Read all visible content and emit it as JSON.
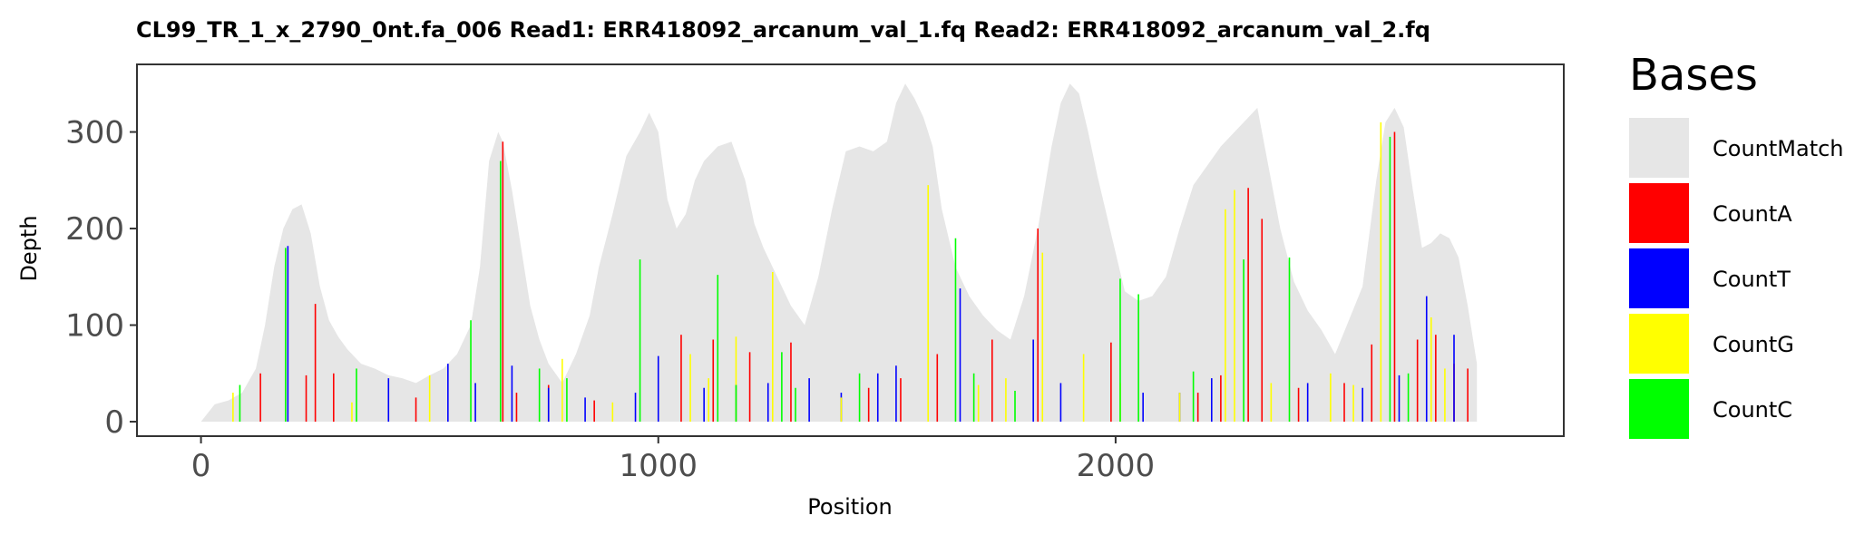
{
  "chart_data": {
    "type": "area",
    "title": "CL99_TR_1_x_2790_0nt.fa_006   Read1: ERR418092_arcanum_val_1.fq   Read2: ERR418092_arcanum_val_2.fq",
    "xlabel": "Position",
    "ylabel": "Depth",
    "xlim": [
      -140,
      2980
    ],
    "ylim": [
      -15,
      370
    ],
    "x_ticks": [
      0,
      1000,
      2000
    ],
    "x_tick_labels": [
      "0",
      "1000",
      "2000"
    ],
    "y_ticks": [
      0,
      100,
      200,
      300
    ],
    "y_tick_labels": [
      "0",
      "100",
      "200",
      "300"
    ],
    "grid": false,
    "legend": {
      "title": "Bases",
      "position": "right",
      "entries": [
        {
          "name": "CountMatch",
          "color": "#e6e6e6"
        },
        {
          "name": "CountA",
          "color": "#ff0000"
        },
        {
          "name": "CountT",
          "color": "#0000ff"
        },
        {
          "name": "CountG",
          "color": "#ffff00"
        },
        {
          "name": "CountC",
          "color": "#00ff00"
        }
      ]
    },
    "series": [
      {
        "name": "CountMatch",
        "color": "#e6e6e6",
        "style": "area",
        "x": [
          0,
          30,
          60,
          90,
          120,
          140,
          160,
          180,
          200,
          220,
          240,
          260,
          280,
          300,
          320,
          350,
          380,
          410,
          440,
          470,
          500,
          530,
          560,
          590,
          610,
          630,
          650,
          660,
          680,
          700,
          720,
          740,
          760,
          790,
          820,
          850,
          870,
          900,
          930,
          960,
          980,
          1000,
          1020,
          1040,
          1060,
          1080,
          1100,
          1130,
          1160,
          1190,
          1210,
          1230,
          1260,
          1290,
          1320,
          1350,
          1380,
          1410,
          1440,
          1470,
          1500,
          1520,
          1540,
          1560,
          1580,
          1600,
          1620,
          1650,
          1680,
          1710,
          1740,
          1770,
          1800,
          1830,
          1860,
          1880,
          1900,
          1920,
          1940,
          1960,
          1990,
          2020,
          2050,
          2080,
          2110,
          2140,
          2170,
          2200,
          2230,
          2260,
          2290,
          2310,
          2330,
          2360,
          2390,
          2420,
          2450,
          2480,
          2510,
          2540,
          2570,
          2590,
          2610,
          2630,
          2650,
          2670,
          2690,
          2710,
          2730,
          2750,
          2770,
          2790
        ],
        "values": [
          0,
          18,
          22,
          30,
          55,
          100,
          160,
          200,
          220,
          225,
          195,
          140,
          105,
          88,
          75,
          60,
          55,
          48,
          45,
          40,
          48,
          55,
          70,
          100,
          160,
          270,
          300,
          290,
          240,
          180,
          120,
          85,
          60,
          40,
          70,
          110,
          160,
          215,
          275,
          300,
          320,
          300,
          230,
          200,
          215,
          250,
          270,
          285,
          290,
          250,
          205,
          180,
          150,
          120,
          100,
          150,
          220,
          280,
          285,
          280,
          290,
          330,
          350,
          335,
          315,
          285,
          220,
          160,
          130,
          110,
          95,
          85,
          130,
          200,
          285,
          330,
          350,
          340,
          300,
          255,
          195,
          135,
          125,
          130,
          150,
          200,
          245,
          265,
          285,
          300,
          315,
          325,
          275,
          200,
          145,
          115,
          95,
          70,
          105,
          140,
          250,
          310,
          325,
          305,
          240,
          180,
          185,
          195,
          190,
          170,
          120,
          60
        ]
      },
      {
        "name": "CountA",
        "color": "#ff0000",
        "style": "spikes",
        "x": [
          130,
          230,
          250,
          290,
          470,
          660,
          690,
          760,
          860,
          1050,
          1120,
          1200,
          1290,
          1460,
          1530,
          1610,
          1730,
          1830,
          1990,
          2180,
          2230,
          2290,
          2320,
          2400,
          2500,
          2560,
          2610,
          2660,
          2700,
          2740,
          2770
        ],
        "values": [
          50,
          48,
          122,
          50,
          25,
          290,
          30,
          38,
          22,
          90,
          85,
          72,
          82,
          35,
          45,
          70,
          85,
          200,
          82,
          30,
          48,
          242,
          210,
          35,
          40,
          80,
          300,
          85,
          90,
          60,
          55
        ]
      },
      {
        "name": "CountT",
        "color": "#0000ff",
        "style": "spikes",
        "x": [
          190,
          410,
          540,
          600,
          680,
          760,
          840,
          950,
          1000,
          1100,
          1170,
          1240,
          1330,
          1400,
          1480,
          1520,
          1660,
          1820,
          1880,
          2060,
          2140,
          2210,
          2420,
          2540,
          2620,
          2680,
          2740
        ],
        "values": [
          182,
          45,
          60,
          40,
          58,
          35,
          25,
          30,
          68,
          35,
          38,
          40,
          45,
          30,
          50,
          58,
          138,
          85,
          40,
          30,
          30,
          45,
          40,
          35,
          48,
          130,
          90
        ]
      },
      {
        "name": "CountG",
        "color": "#ffff00",
        "style": "spikes",
        "x": [
          70,
          330,
          500,
          790,
          900,
          1070,
          1110,
          1170,
          1250,
          1400,
          1590,
          1700,
          1760,
          1840,
          1930,
          2010,
          2140,
          2240,
          2260,
          2340,
          2470,
          2520,
          2580,
          2690,
          2720
        ],
        "values": [
          30,
          20,
          48,
          65,
          20,
          70,
          45,
          88,
          155,
          25,
          245,
          38,
          45,
          175,
          70,
          40,
          30,
          220,
          240,
          40,
          50,
          38,
          310,
          108,
          55
        ]
      },
      {
        "name": "CountC",
        "color": "#00ff00",
        "style": "spikes",
        "x": [
          85,
          185,
          340,
          590,
          655,
          740,
          800,
          960,
          1130,
          1170,
          1270,
          1300,
          1440,
          1650,
          1690,
          1780,
          2010,
          2050,
          2170,
          2280,
          2380,
          2600,
          2640
        ],
        "values": [
          38,
          180,
          55,
          105,
          270,
          55,
          45,
          168,
          152,
          38,
          72,
          35,
          50,
          190,
          50,
          32,
          148,
          132,
          52,
          168,
          170,
          295,
          50
        ]
      }
    ]
  }
}
